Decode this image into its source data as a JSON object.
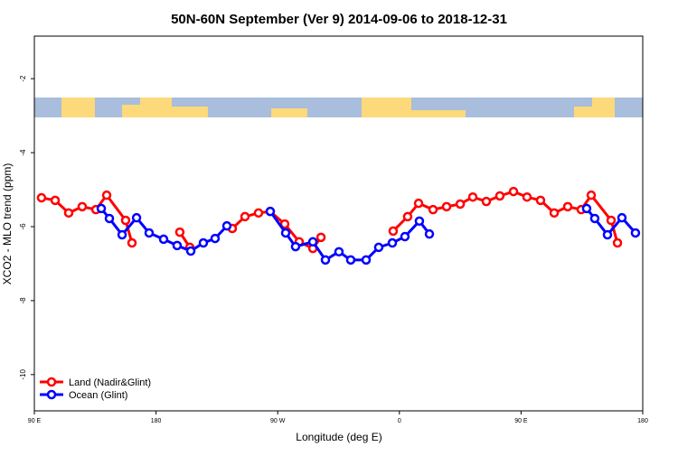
{
  "chart_data": {
    "type": "line",
    "title": "50N-60N September (Ver 9)   2014-09-06 to 2018-12-31",
    "x_label": "Longitude (deg E)",
    "y_label": "XCO2 - MLO trend (ppm)",
    "xlim": [
      90,
      540
    ],
    "ylim": [
      -10.98,
      -0.85
    ],
    "xticks": [
      {
        "value": 90,
        "label": "90 E"
      },
      180,
      {
        "value": 270,
        "label": "90 W"
      },
      {
        "value": 360,
        "label": "0"
      },
      {
        "value": 450,
        "label": "90 E"
      },
      {
        "value": 540,
        "label": "180"
      }
    ],
    "yticks": [
      -2,
      -4,
      -6,
      -8,
      -10
    ],
    "legend": "bottom-left",
    "series": [
      {
        "name": "Land (Nadir&Glint)",
        "color": "#ff0000",
        "x": [
          95.3,
          105.4,
          115.4,
          125.4,
          135.5,
          143.5,
          157.5,
          162.2,
          null,
          197.6,
          205.0,
          null,
          236.4,
          245.8,
          255.8,
          264.5,
          275.2,
          285.9,
          296.0,
          302.0,
          null,
          355.4,
          366.1,
          374.2,
          384.9,
          394.9,
          405.0,
          414.3,
          424.3,
          434.3,
          444.4,
          454.4,
          464.4,
          474.5,
          484.5,
          494.5,
          501.9,
          516.6,
          521.3
        ],
        "values": [
          -5.22,
          -5.29,
          -5.63,
          -5.46,
          -5.54,
          -5.15,
          -5.83,
          -6.44,
          null,
          -6.15,
          -6.56,
          null,
          -6.05,
          -5.73,
          -5.63,
          -5.59,
          -5.93,
          -6.41,
          -6.59,
          -6.29,
          null,
          -6.12,
          -5.73,
          -5.37,
          -5.54,
          -5.46,
          -5.39,
          -5.2,
          -5.32,
          -5.17,
          -5.05,
          -5.2,
          -5.29,
          -5.63,
          -5.46,
          -5.54,
          -5.15,
          -5.83,
          -6.44
        ]
      },
      {
        "name": "Ocean (Glint)",
        "color": "#0000ff",
        "x": [
          139.5,
          145.5,
          154.9,
          165.6,
          174.9,
          185.6,
          195.6,
          205.7,
          215.0,
          223.7,
          232.4,
          null,
          264.5,
          275.9,
          283.2,
          296.0,
          305.3,
          315.3,
          324.0,
          335.4,
          344.7,
          354.8,
          364.1,
          374.8,
          382.2,
          null,
          498.5,
          504.5,
          513.9,
          524.6,
          534.6
        ],
        "values": [
          -5.51,
          -5.78,
          -6.22,
          -5.76,
          -6.17,
          -6.34,
          -6.51,
          -6.66,
          -6.44,
          -6.32,
          -5.98,
          null,
          -5.59,
          -6.17,
          -6.54,
          -6.41,
          -6.9,
          -6.68,
          -6.9,
          -6.9,
          -6.56,
          -6.44,
          -6.27,
          -5.85,
          -6.2,
          null,
          -5.51,
          -5.78,
          -6.22,
          -5.76,
          -6.17
        ]
      }
    ]
  }
}
